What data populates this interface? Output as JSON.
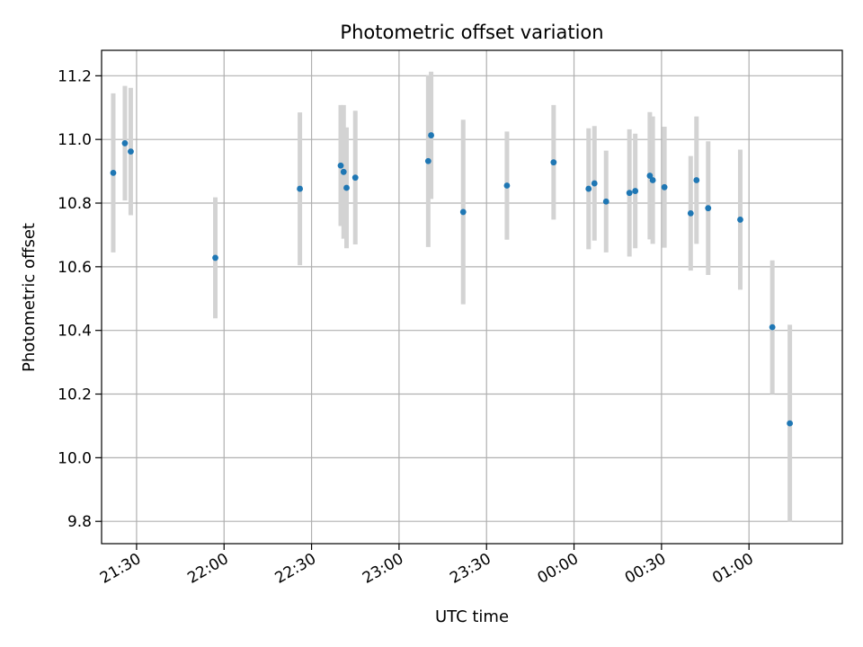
{
  "chart_data": {
    "type": "scatter",
    "title": "Photometric offset variation",
    "xlabel": "UTC time",
    "ylabel": "Photometric offset",
    "x_ticks": [
      "21:30",
      "22:00",
      "22:30",
      "23:00",
      "23:30",
      "00:00",
      "00:30",
      "01:00"
    ],
    "y_ticks": [
      "9.8",
      "10.0",
      "10.2",
      "10.4",
      "10.6",
      "10.8",
      "11.0",
      "11.2"
    ],
    "xlim": [
      "21:18",
      "01:32"
    ],
    "ylim": [
      9.73,
      11.28
    ],
    "grid": true,
    "colors": {
      "point": "#1f77b4",
      "errorbar": "#d3d3d3",
      "grid": "#b0b0b0"
    },
    "points": [
      {
        "x": "21:22",
        "y": 10.895,
        "err": 0.25
      },
      {
        "x": "21:26",
        "y": 10.988,
        "err": 0.18
      },
      {
        "x": "21:28",
        "y": 10.962,
        "err": 0.2
      },
      {
        "x": "21:57",
        "y": 10.628,
        "err": 0.19
      },
      {
        "x": "22:26",
        "y": 10.845,
        "err": 0.24
      },
      {
        "x": "22:40",
        "y": 10.918,
        "err": 0.19
      },
      {
        "x": "22:41",
        "y": 10.898,
        "err": 0.21
      },
      {
        "x": "22:42",
        "y": 10.848,
        "err": 0.19
      },
      {
        "x": "22:45",
        "y": 10.88,
        "err": 0.21
      },
      {
        "x": "23:10",
        "y": 10.932,
        "err": 0.27
      },
      {
        "x": "23:11",
        "y": 11.013,
        "err": 0.2
      },
      {
        "x": "23:22",
        "y": 10.772,
        "err": 0.29
      },
      {
        "x": "23:37",
        "y": 10.855,
        "err": 0.17
      },
      {
        "x": "23:53",
        "y": 10.928,
        "err": 0.18
      },
      {
        "x": "00:05",
        "y": 10.845,
        "err": 0.19
      },
      {
        "x": "00:07",
        "y": 10.862,
        "err": 0.18
      },
      {
        "x": "00:11",
        "y": 10.805,
        "err": 0.16
      },
      {
        "x": "00:19",
        "y": 10.832,
        "err": 0.2
      },
      {
        "x": "00:21",
        "y": 10.838,
        "err": 0.18
      },
      {
        "x": "00:26",
        "y": 10.886,
        "err": 0.2
      },
      {
        "x": "00:27",
        "y": 10.872,
        "err": 0.2
      },
      {
        "x": "00:31",
        "y": 10.85,
        "err": 0.19
      },
      {
        "x": "00:40",
        "y": 10.768,
        "err": 0.18
      },
      {
        "x": "00:42",
        "y": 10.872,
        "err": 0.2
      },
      {
        "x": "00:46",
        "y": 10.784,
        "err": 0.21
      },
      {
        "x": "00:57",
        "y": 10.748,
        "err": 0.22
      },
      {
        "x": "01:08",
        "y": 10.41,
        "err": 0.21
      },
      {
        "x": "01:14",
        "y": 10.108,
        "err": 0.31
      }
    ]
  }
}
